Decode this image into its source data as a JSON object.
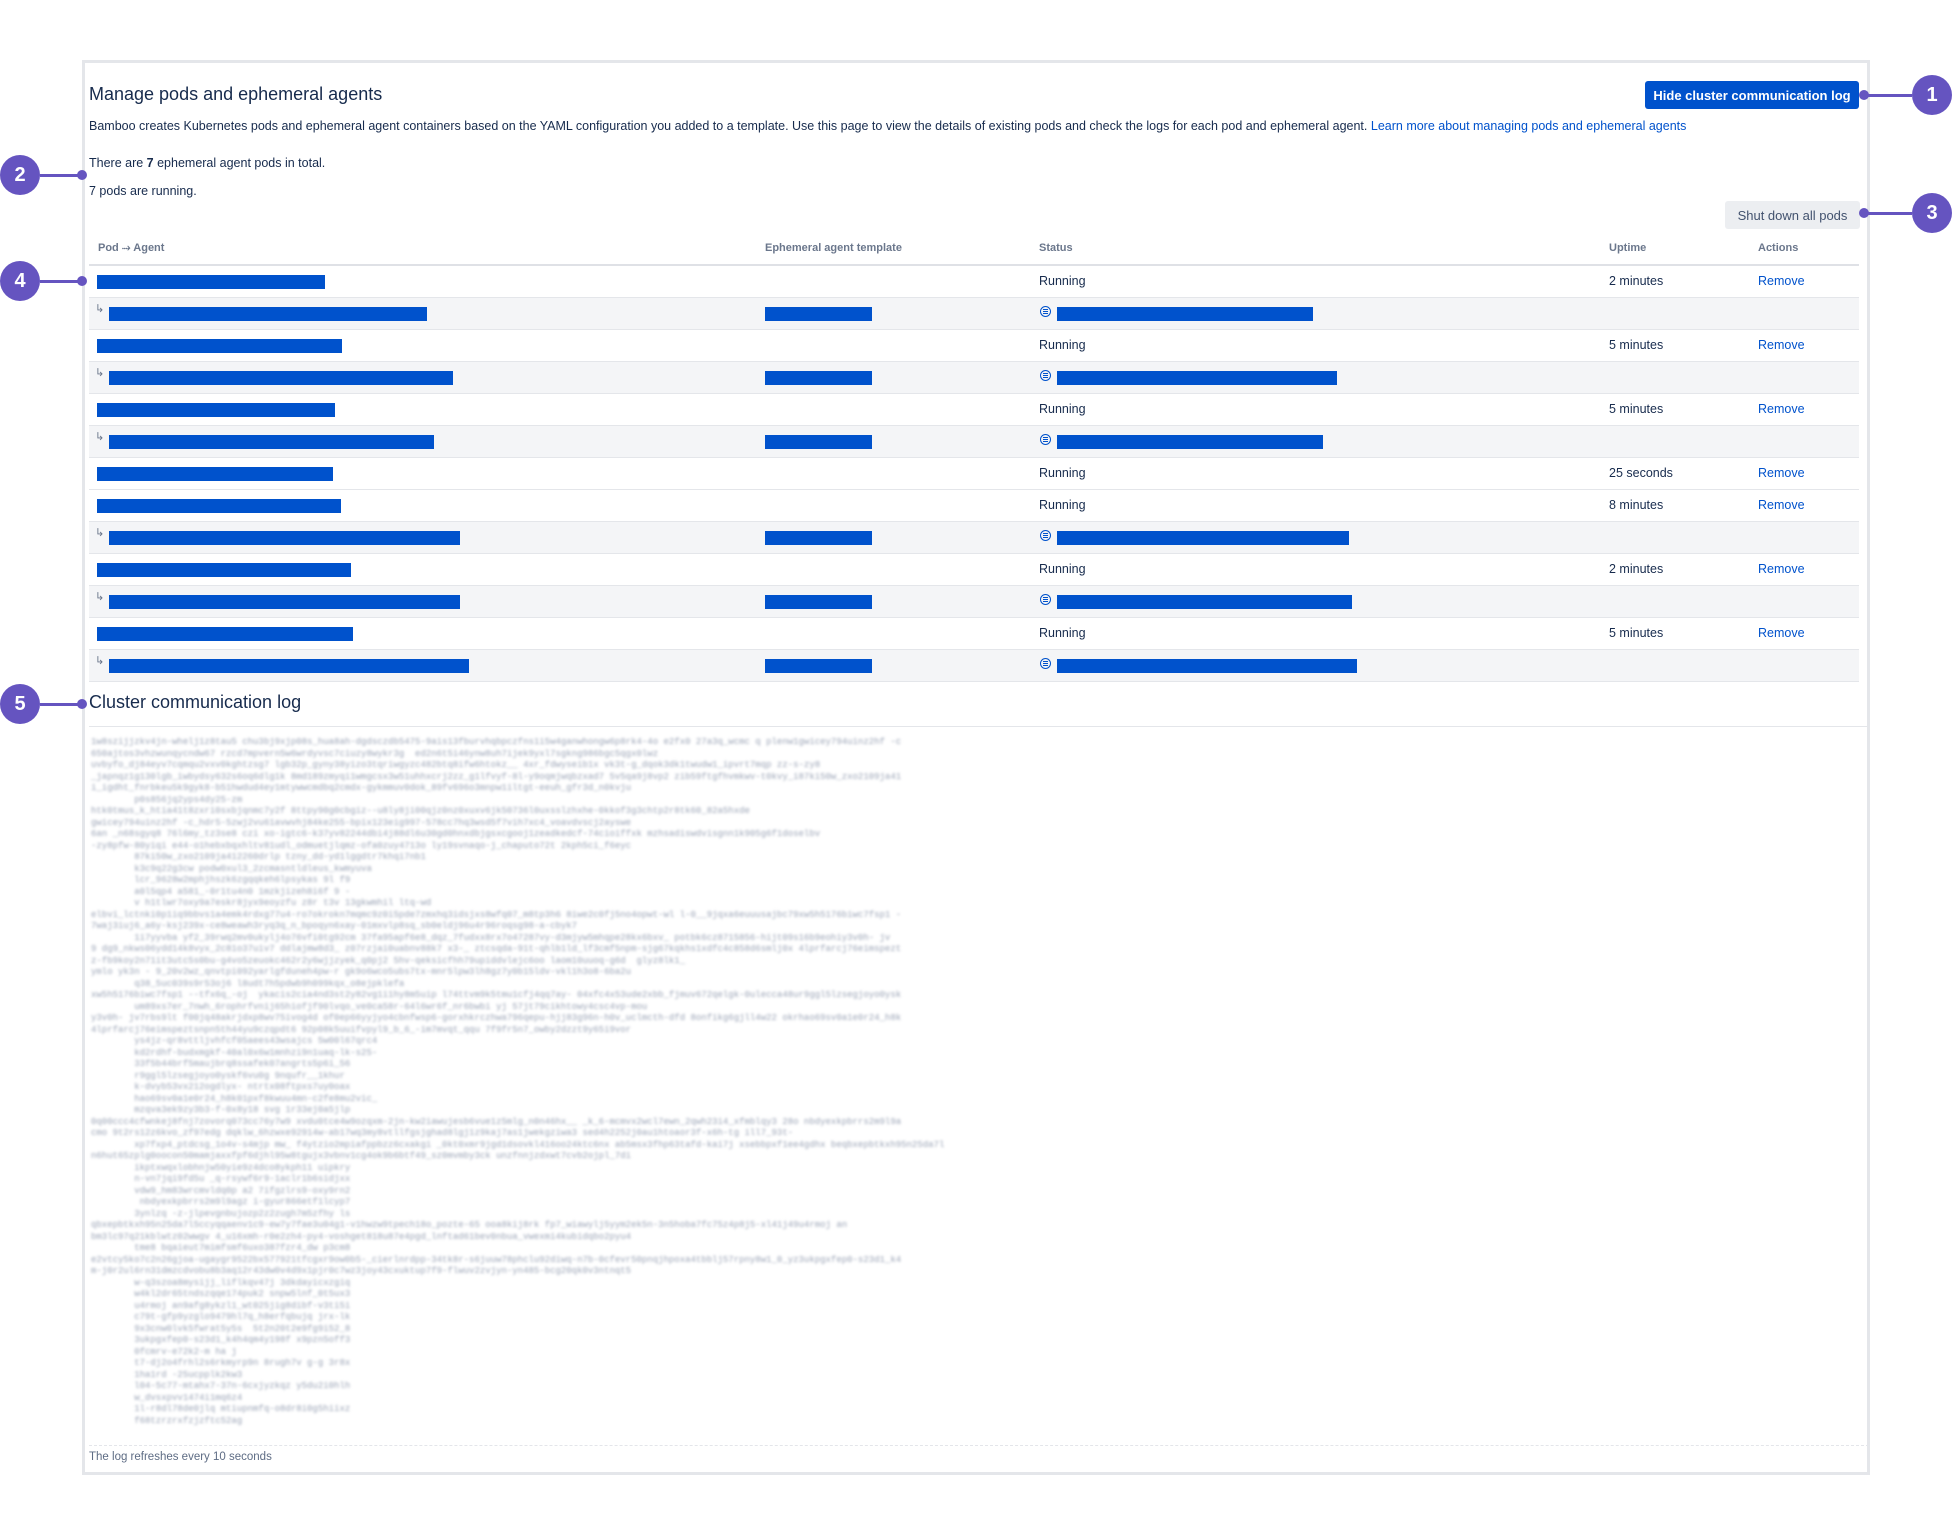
{
  "header": {
    "title": "Manage pods and ephemeral agents",
    "hide_log_button": "Hide cluster communication log",
    "description_text": "Bamboo creates Kubernetes pods and ephemeral agent containers based on the YAML configuration you added to a template. Use this page to view the details of existing pods and check the logs for each pod and ephemeral agent.",
    "description_link": "Learn more about managing pods and ephemeral agents"
  },
  "summary": {
    "total_prefix": "There are ",
    "total_count": "7",
    "total_suffix": " ephemeral agent pods in total.",
    "running": "7 pods are running."
  },
  "toolbar": {
    "shutdown_button": "Shut down all pods"
  },
  "table": {
    "columns": {
      "pod_agent": "Pod ⤑ Agent",
      "template": "Ephemeral agent template",
      "status": "Status",
      "uptime": "Uptime",
      "actions": "Actions"
    },
    "rows": [
      {
        "type": "pod",
        "status": "Running",
        "uptime": "2 minutes",
        "action": "Remove"
      },
      {
        "type": "agent"
      },
      {
        "type": "pod",
        "status": "Running",
        "uptime": "5 minutes",
        "action": "Remove"
      },
      {
        "type": "agent"
      },
      {
        "type": "pod",
        "status": "Running",
        "uptime": "5 minutes",
        "action": "Remove"
      },
      {
        "type": "agent"
      },
      {
        "type": "pod",
        "status": "Running",
        "uptime": "25 seconds",
        "action": "Remove"
      },
      {
        "type": "pod",
        "status": "Running",
        "uptime": "8 minutes",
        "action": "Remove"
      },
      {
        "type": "agent"
      },
      {
        "type": "pod",
        "status": "Running",
        "uptime": "2 minutes",
        "action": "Remove"
      },
      {
        "type": "agent"
      },
      {
        "type": "pod",
        "status": "Running",
        "uptime": "5 minutes",
        "action": "Remove"
      },
      {
        "type": "agent"
      }
    ]
  },
  "log": {
    "title": "Cluster communication log",
    "footer": "The log refreshes every 10 seconds"
  },
  "callouts": [
    "1",
    "2",
    "3",
    "4",
    "5"
  ],
  "colors": {
    "primary": "#0052cc",
    "callout": "#6554c0"
  }
}
